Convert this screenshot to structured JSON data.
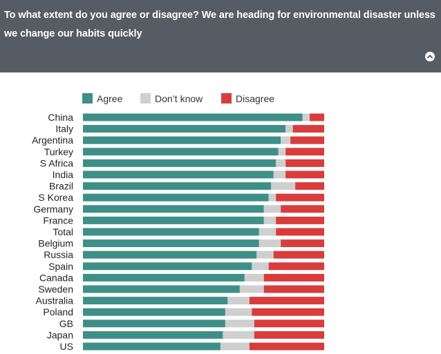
{
  "header": {
    "question": "To what extent do you agree or disagree? We are heading for environmental disaster unless we change our habits quickly"
  },
  "colors": {
    "header_bg": "#555c64",
    "agree": "#3d8f88",
    "dont_know": "#cfcfcf",
    "disagree": "#d93c3c"
  },
  "legend": {
    "agree": "Agree",
    "dont_know": "Don’t know",
    "disagree": "Disagree"
  },
  "chart_data": {
    "type": "bar",
    "orientation": "horizontal",
    "stacked": true,
    "xlim": [
      0,
      100
    ],
    "categories": [
      "China",
      "Italy",
      "Argentina",
      "Turkey",
      "S Africa",
      "India",
      "Brazil",
      "S Korea",
      "Germany",
      "France",
      "Total",
      "Belgium",
      "Russia",
      "Spain",
      "Canada",
      "Sweden",
      "Australia",
      "Poland",
      "GB",
      "Japan",
      "US"
    ],
    "series": [
      {
        "name": "Agree",
        "values": [
          91,
          84,
          82,
          81,
          80,
          79,
          78,
          77,
          75,
          75,
          73,
          73,
          72,
          70,
          67,
          65,
          60,
          59,
          59,
          58,
          57
        ]
      },
      {
        "name": "Don’t know",
        "values": [
          3,
          3,
          4,
          3,
          4,
          5,
          10,
          3,
          7,
          5,
          7,
          9,
          7,
          7,
          8,
          10,
          9,
          11,
          12,
          13,
          12
        ]
      },
      {
        "name": "Disagree",
        "values": [
          6,
          13,
          14,
          16,
          16,
          16,
          12,
          20,
          18,
          20,
          20,
          18,
          21,
          23,
          25,
          25,
          31,
          30,
          29,
          29,
          31
        ]
      }
    ],
    "grid": false,
    "legend_position": "top"
  }
}
